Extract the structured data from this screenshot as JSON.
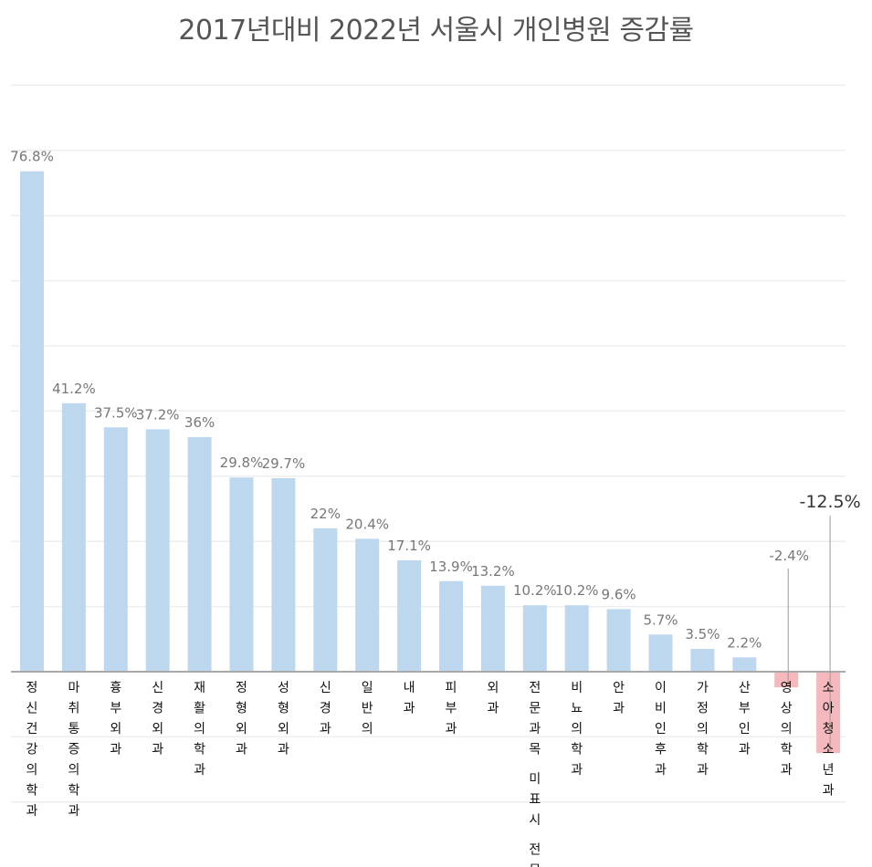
{
  "chart_data": {
    "type": "bar",
    "title": "2017년대비 2022년 서울시 개인병원 증감률",
    "xlabel": "",
    "ylabel": "",
    "categories": [
      "정신건강의학과",
      "마취통증의학과",
      "흉부외과",
      "신경외과",
      "재활의학과",
      "정형외과",
      "성형외과",
      "신경과",
      "일반의",
      "내과",
      "피부과",
      "외과",
      "전문과목 미표시 전문의",
      "비뇨의학과",
      "안과",
      "이비인후과",
      "가정의학과",
      "산부인과",
      "영상의학과",
      "소아청소년과"
    ],
    "values": [
      76.8,
      41.2,
      37.5,
      37.2,
      36,
      29.8,
      29.7,
      22,
      20.4,
      17.1,
      13.9,
      13.2,
      10.2,
      10.2,
      9.6,
      5.7,
      3.5,
      2.2,
      -2.4,
      -12.5
    ],
    "value_labels": [
      "76.8%",
      "41.2%",
      "37.5%",
      "37.2%",
      "36%",
      "29.8%",
      "29.7%",
      "22%",
      "20.4%",
      "17.1%",
      "13.9%",
      "13.2%",
      "10.2%",
      "10.2%",
      "9.6%",
      "5.7%",
      "3.5%",
      "2.2%",
      "-2.4%",
      "-12.5%"
    ],
    "ylim": [
      -20,
      90
    ],
    "grid": true,
    "legend": "none",
    "colors": {
      "positive": "#bdd7ef",
      "negative": "#f4b8bd"
    }
  }
}
